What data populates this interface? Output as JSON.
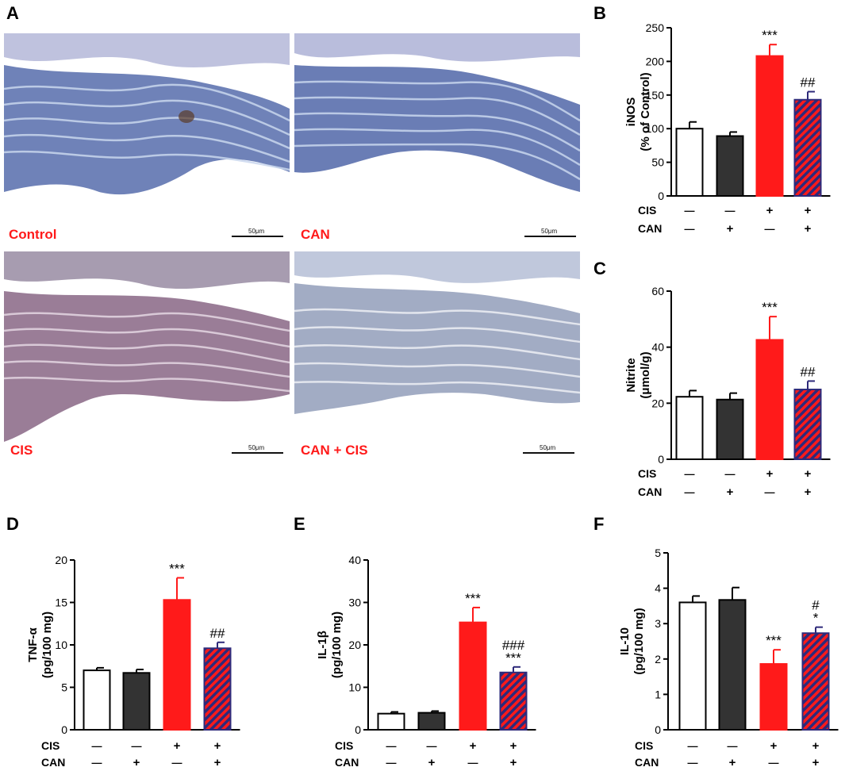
{
  "panel_letters": {
    "A": "A",
    "B": "B",
    "C": "C",
    "D": "D",
    "E": "E",
    "F": "F"
  },
  "micrographs": [
    {
      "label": "Control",
      "scale": "50μm"
    },
    {
      "label": "CAN",
      "scale": "50μm"
    },
    {
      "label": "CIS",
      "scale": "50μm"
    },
    {
      "label": "CAN + CIS",
      "scale": "50μm"
    }
  ],
  "colors": {
    "control": "#ffffff",
    "can": "#333333",
    "cis": "#ff1a1a",
    "hatch_fg": "#ff1a1a",
    "hatch_bg": "#2e2a7a",
    "error": "#ff1a1a"
  },
  "chart_data": [
    {
      "id": "B",
      "type": "bar",
      "ylabel": [
        "iNOS",
        "(% of Control)"
      ],
      "ylim": [
        0,
        250
      ],
      "ticks": [
        0,
        50,
        100,
        150,
        200,
        250
      ],
      "values": [
        100,
        89,
        208,
        143
      ],
      "errors": [
        10,
        6,
        17,
        12
      ],
      "annotations": [
        [
          ""
        ],
        [
          ""
        ],
        [
          "***"
        ],
        [
          "##"
        ]
      ],
      "rows": [
        {
          "name": "CIS",
          "marks": [
            "—",
            "—",
            "+",
            "+"
          ]
        },
        {
          "name": "CAN",
          "marks": [
            "—",
            "+",
            "—",
            "+"
          ]
        }
      ]
    },
    {
      "id": "C",
      "type": "bar",
      "ylabel": [
        "Nitrite",
        "(μmol/g)"
      ],
      "ylim": [
        0,
        60
      ],
      "ticks": [
        0,
        20,
        40,
        60
      ],
      "values": [
        22.3,
        21.3,
        42.6,
        24.9
      ],
      "errors": [
        2.2,
        2.3,
        8.3,
        3
      ],
      "annotations": [
        [
          ""
        ],
        [
          ""
        ],
        [
          "***"
        ],
        [
          "##"
        ]
      ],
      "rows": [
        {
          "name": "CIS",
          "marks": [
            "—",
            "—",
            "+",
            "+"
          ]
        },
        {
          "name": "CAN",
          "marks": [
            "—",
            "+",
            "—",
            "+"
          ]
        }
      ]
    },
    {
      "id": "D",
      "type": "bar",
      "ylabel": [
        "TNF-α",
        "(pg/100 mg)"
      ],
      "ylim": [
        0,
        20
      ],
      "ticks": [
        0,
        5,
        10,
        15,
        20
      ],
      "values": [
        7.0,
        6.7,
        15.3,
        9.6
      ],
      "errors": [
        0.3,
        0.4,
        2.6,
        0.7
      ],
      "annotations": [
        [
          ""
        ],
        [
          ""
        ],
        [
          "***"
        ],
        [
          "##"
        ]
      ],
      "rows": [
        {
          "name": "CIS",
          "marks": [
            "—",
            "—",
            "+",
            "+"
          ]
        },
        {
          "name": "CAN",
          "marks": [
            "—",
            "+",
            "—",
            "+"
          ]
        }
      ]
    },
    {
      "id": "E",
      "type": "bar",
      "ylabel": [
        "IL-1β",
        "(pg/100 mg)"
      ],
      "ylim": [
        0,
        40
      ],
      "ticks": [
        0,
        10,
        20,
        30,
        40
      ],
      "values": [
        3.8,
        4.0,
        25.3,
        13.5
      ],
      "errors": [
        0.4,
        0.4,
        3.5,
        1.3
      ],
      "annotations": [
        [
          ""
        ],
        [
          ""
        ],
        [
          "***"
        ],
        [
          "###",
          "***"
        ]
      ],
      "rows": [
        {
          "name": "CIS",
          "marks": [
            "—",
            "—",
            "+",
            "+"
          ]
        },
        {
          "name": "CAN",
          "marks": [
            "—",
            "+",
            "—",
            "+"
          ]
        }
      ]
    },
    {
      "id": "F",
      "type": "bar",
      "ylabel": [
        "IL-10",
        "(pg/100 mg)"
      ],
      "ylim": [
        0,
        5
      ],
      "ticks": [
        0,
        1,
        2,
        3,
        4,
        5
      ],
      "values": [
        3.6,
        3.67,
        1.86,
        2.73
      ],
      "errors": [
        0.18,
        0.35,
        0.4,
        0.17
      ],
      "annotations": [
        [
          ""
        ],
        [
          ""
        ],
        [
          "***"
        ],
        [
          "#",
          "*"
        ]
      ],
      "rows": [
        {
          "name": "CIS",
          "marks": [
            "—",
            "—",
            "+",
            "+"
          ]
        },
        {
          "name": "CAN",
          "marks": [
            "—",
            "+",
            "—",
            "+"
          ]
        }
      ]
    }
  ]
}
